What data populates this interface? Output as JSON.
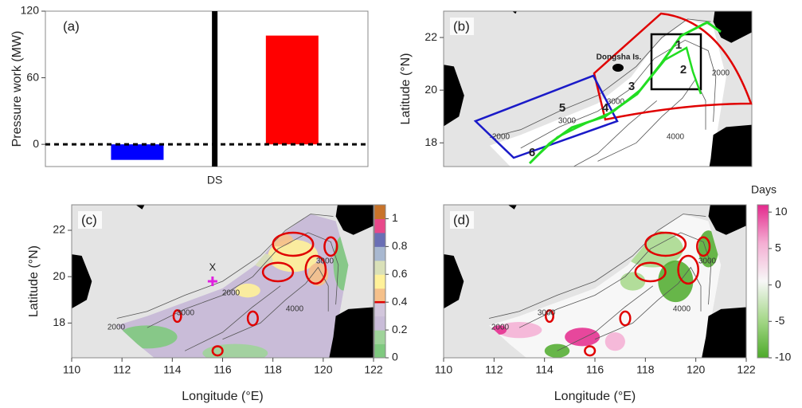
{
  "chart_data": [
    {
      "type": "bar",
      "title": "(a)",
      "ylabel": "Pressure work (MW)",
      "categories": [
        null,
        "DS",
        null
      ],
      "values": [
        -14,
        null,
        98
      ],
      "colors": [
        "#0000ff",
        "#000000",
        "#ff0000"
      ],
      "ylim": [
        -20,
        120
      ],
      "yticks": [
        0,
        60,
        120
      ]
    },
    {
      "type": "map",
      "title": "(b)",
      "ylabel": "Latitude (°N)",
      "xlim": [
        110,
        122
      ],
      "ylim": [
        17.1,
        23
      ],
      "yticks": [
        18,
        20,
        22
      ],
      "annotations": [
        "Dongsha Is.",
        "1",
        "2",
        "3",
        "4",
        "5",
        "6"
      ],
      "contour_labels": [
        "2000",
        "3000",
        "3000",
        "2000",
        "4000"
      ]
    },
    {
      "type": "map",
      "title": "(c)",
      "xlabel": "Longitude (°E)",
      "ylabel": "Latitude (°N)",
      "xlim": [
        110,
        122
      ],
      "ylim": [
        16.5,
        23.1
      ],
      "xticks": [
        110,
        112,
        114,
        116,
        118,
        120,
        122
      ],
      "yticks": [
        18,
        20,
        22
      ],
      "marker": "X",
      "contour_labels": [
        "2000",
        "2000",
        "3000",
        "4000",
        "3000"
      ],
      "colorbar": {
        "lim": [
          0,
          1.1
        ],
        "ticks": [
          0,
          0.2,
          0.4,
          0.6,
          0.8,
          1
        ],
        "colors": [
          "#7fc97f",
          "#9fd39a",
          "#c9bcd8",
          "#d2c6dc",
          "#f5c08a",
          "#fff199",
          "#d9e0b8",
          "#a8b8d0",
          "#6a6fb5",
          "#e8488a",
          "#c8732a"
        ],
        "contour_level": 0.4,
        "contour_color": "#e00000"
      }
    },
    {
      "type": "map",
      "title": "(d)",
      "xlabel": "Longitude (°E)",
      "xlim": [
        110,
        122
      ],
      "ylim": [
        16.5,
        23.1
      ],
      "xticks": [
        110,
        112,
        114,
        116,
        118,
        120,
        122
      ],
      "contour_labels": [
        "2000",
        "3000",
        "3000",
        "4000"
      ],
      "colorbar": {
        "title": "Days",
        "lim": [
          -10,
          11
        ],
        "ticks": [
          -10,
          -5,
          0,
          5,
          10
        ],
        "colors": [
          "#4daa2a",
          "#a6d88a",
          "#f7f7f7",
          "#f4aed3",
          "#e4288c"
        ]
      }
    }
  ]
}
